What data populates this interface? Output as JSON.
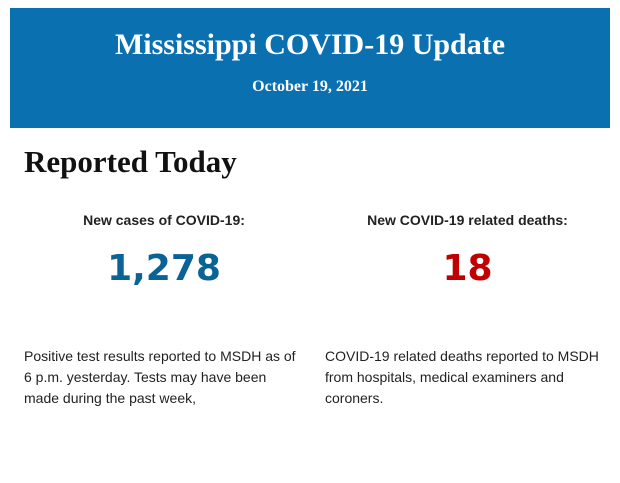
{
  "header": {
    "title": "Mississippi COVID-19 Update",
    "date": "October 19, 2021"
  },
  "section": {
    "heading": "Reported Today",
    "cards": [
      {
        "label": "New cases of COVID-19:",
        "value": "1,278",
        "description": "Positive test results reported to MSDH as of 6 p.m. yesterday. Tests may have been made during the past week,"
      },
      {
        "label": "New COVID-19 related deaths:",
        "value": "18",
        "description": "COVID-19 related deaths reported to MSDH from hospitals, medical examiners and coroners."
      }
    ]
  }
}
